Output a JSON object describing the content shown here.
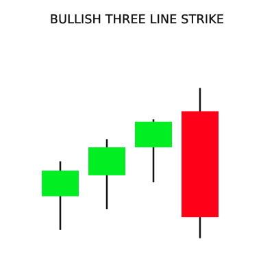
{
  "chart_data": {
    "type": "candlestick",
    "title": "BULLISH THREE LINE STRIKE",
    "xlabel": "",
    "ylabel": "",
    "grid": false,
    "legend": "none",
    "candles": [
      {
        "open": 27.5,
        "high": 42.5,
        "low": 13,
        "close": 38.5,
        "color": "#00ee22",
        "direction": "up"
      },
      {
        "open": 36.5,
        "high": 52,
        "low": 22,
        "close": 48.5,
        "color": "#00ee22",
        "direction": "up"
      },
      {
        "open": 48.5,
        "high": 60.5,
        "low": 33.5,
        "close": 59.5,
        "color": "#00ee22",
        "direction": "up"
      },
      {
        "open": 64,
        "high": 74,
        "low": 9.5,
        "close": 18.5,
        "color": "#ff0019",
        "direction": "down"
      }
    ],
    "ylim": [
      0,
      100
    ],
    "wick_color": "#111111"
  }
}
